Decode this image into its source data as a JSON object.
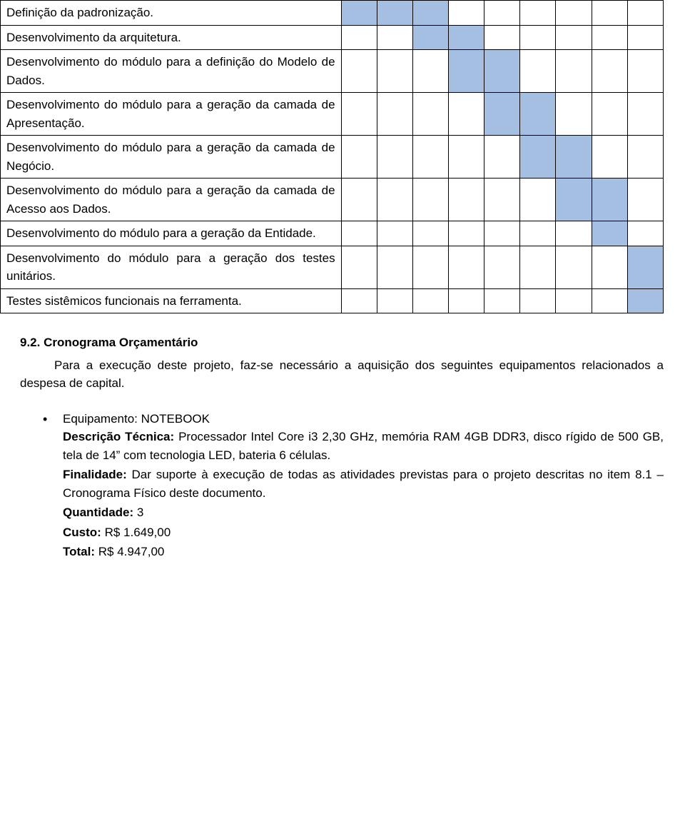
{
  "table": {
    "col_count": 9,
    "filled_color": "#a4bfe2",
    "border_color": "#000000",
    "rows": [
      {
        "label": "Definição da padronização.",
        "filled": [
          0,
          1,
          2
        ]
      },
      {
        "label": "Desenvolvimento da arquitetura.",
        "filled": [
          2,
          3
        ]
      },
      {
        "label": "Desenvolvimento do módulo para a definição do Modelo de Dados.",
        "filled": [
          3,
          4
        ]
      },
      {
        "label": "Desenvolvimento do módulo para a geração da camada de Apresentação.",
        "filled": [
          4,
          5
        ]
      },
      {
        "label": "Desenvolvimento do módulo para a geração da camada de Negócio.",
        "filled": [
          5,
          6
        ]
      },
      {
        "label": "Desenvolvimento do módulo para a geração da camada de Acesso aos Dados.",
        "filled": [
          6,
          7
        ]
      },
      {
        "label": "Desenvolvimento do módulo para a geração da Entidade.",
        "filled": [
          7
        ]
      },
      {
        "label": "Desenvolvimento do módulo para a geração dos testes unitários.",
        "filled": [
          8
        ]
      },
      {
        "label": "Testes sistêmicos funcionais na ferramenta.",
        "filled": [
          8
        ]
      }
    ]
  },
  "section": {
    "number": "9.2.",
    "title": "Cronograma Orçamentário",
    "intro": "Para a execução deste projeto, faz-se necessário a aquisição dos seguintes equipamentos relacionados a despesa de capital."
  },
  "equipment": {
    "equip_label": "Equipamento:",
    "equip_value": "NOTEBOOK",
    "desc_label": "Descrição Técnica:",
    "desc_value": "Processador Intel Core i3 2,30 GHz, memória RAM 4GB DDR3, disco rígido de 500 GB, tela de 14” com tecnologia LED, bateria 6 células.",
    "final_label": "Finalidade:",
    "final_value": "Dar suporte à execução de todas as atividades previstas para o projeto descritas no item 8.1 – Cronograma Físico deste documento.",
    "qty_label": "Quantidade:",
    "qty_value": "3",
    "cost_label": "Custo:",
    "cost_value": "R$ 1.649,00",
    "total_label": "Total:",
    "total_value": "R$ 4.947,00"
  }
}
